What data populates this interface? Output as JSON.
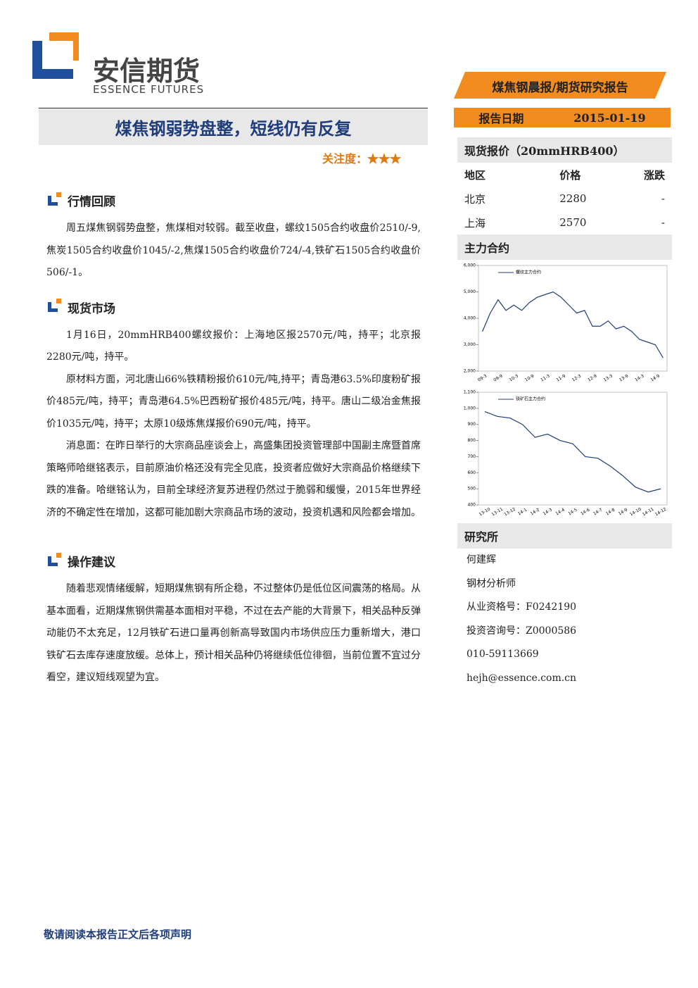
{
  "header": {
    "logo_cn": "安信期货",
    "logo_en": "ESSENCE FUTURES",
    "banner": "煤焦钢晨报/期货研究报告"
  },
  "title": "煤焦钢弱势盘整，短线仍有反复",
  "attention": {
    "label": "关注度：",
    "stars": "★★★"
  },
  "report_date": {
    "label": "报告日期",
    "value": "2015-01-19"
  },
  "sections": [
    {
      "heading": "行情回顾",
      "paragraphs": [
        "周五煤焦钢弱势盘整，焦煤相对较弱。截至收盘，螺纹1505合约收盘价2510/-9,焦炭1505合约收盘价1045/-2,焦煤1505合约收盘价724/-4,铁矿石1505合约收盘价506/-1。"
      ]
    },
    {
      "heading": "现货市场",
      "paragraphs": [
        "1月16日，20mmHRB400螺纹报价：上海地区报2570元/吨，持平；北京报2280元/吨，持平。",
        "原材料方面，河北唐山66%铁精粉报价610元/吨,持平；青岛港63.5%印度粉矿报价485元/吨，持平；青岛港64.5%巴西粉矿报价485元/吨，持平。唐山二级冶金焦报价1035元/吨，持平；太原10级炼焦煤报价690元/吨，持平。",
        "消息面：在昨日举行的大宗商品座谈会上，高盛集团投资管理部中国副主席暨首席策略师哈继铭表示，目前原油价格还没有完全见底，投资者应做好大宗商品价格继续下跌的准备。哈继铭认为，目前全球经济复苏进程仍然过于脆弱和缓慢，2015年世界经济的不确定性在增加，这都可能加剧大宗商品市场的波动，投资机遇和风险都会增加。"
      ]
    },
    {
      "heading": "操作建议",
      "paragraphs": [
        "随着悲观情绪缓解，短期煤焦钢有所企稳，不过整体仍是低位区间震荡的格局。从基本面看，近期煤焦钢供需基本面相对平稳，不过在去产能的大背景下，相关品种反弹动能仍不太充足，12月铁矿石进口量再创新高导致国内市场供应压力重新增大，港口铁矿石去库存速度放缓。总体上，预计相关品种仍将继续低位徘徊，当前位置不宜过分看空，建议短线观望为宜。"
      ]
    }
  ],
  "spot": {
    "heading": "现货报价（20mmHRB400）",
    "columns": [
      "地区",
      "价格",
      "涨跌"
    ],
    "rows": [
      [
        "北京",
        "2280",
        "-"
      ],
      [
        "上海",
        "2570",
        "-"
      ]
    ]
  },
  "contracts": {
    "heading": "主力合约",
    "charts": [
      {
        "type": "line",
        "categories": [
          "09-3",
          null,
          "09-9",
          null,
          "10-3",
          null,
          "10-9",
          null,
          "11-3",
          null,
          "11-9",
          null,
          "12-3",
          null,
          "12-9",
          null,
          "13-3",
          null,
          "13-9",
          null,
          "14-3",
          null,
          "14-9",
          null
        ],
        "series": [
          {
            "name": "螺纹主力合约",
            "color": "#1f3d7a",
            "values": [
              3500,
              4200,
              4700,
              4300,
              4500,
              4300,
              4600,
              4800,
              4900,
              5000,
              4800,
              4500,
              4200,
              4300,
              3700,
              3700,
              3900,
              3600,
              3700,
              3500,
              3200,
              3100,
              3000,
              2500
            ]
          }
        ],
        "ylim": [
          2000,
          6000
        ],
        "yticks": [
          {
            "value": 2000,
            "label": "2,000"
          },
          {
            "value": 3000,
            "label": "3,000"
          },
          {
            "value": 4000,
            "label": "4,000"
          },
          {
            "value": 5000,
            "label": "5,000"
          },
          {
            "value": 6000,
            "label": "6,000"
          }
        ]
      },
      {
        "type": "line",
        "categories": [
          "13-10",
          "13-11",
          "13-12",
          "14-1",
          "14-2",
          "14-3",
          "14-4",
          "14-5",
          "14-6",
          "14-7",
          "14-8",
          "14-9",
          "14-10",
          "14-11",
          "14-12"
        ],
        "series": [
          {
            "name": "铁矿石主力合约",
            "color": "#1f3d7a",
            "values": [
              980,
              950,
              940,
              900,
              820,
              840,
              800,
              780,
              700,
              690,
              640,
              580,
              510,
              480,
              500
            ]
          }
        ],
        "ylim": [
          400,
          1100
        ],
        "yticks": [
          400,
          500,
          600,
          700,
          800,
          900,
          {
            "value": 1000,
            "label": "1,000"
          },
          {
            "value": 1100,
            "label": "1,100"
          }
        ]
      }
    ]
  },
  "research": {
    "heading": "研究所",
    "lines": [
      "何建辉",
      "钢材分析师",
      "从业资格号：F0242190",
      "投资咨询号：Z0000586",
      "010-59113669",
      "hejh@essence.com.cn"
    ]
  },
  "footer": "敬请阅读本报告正文后各项声明"
}
